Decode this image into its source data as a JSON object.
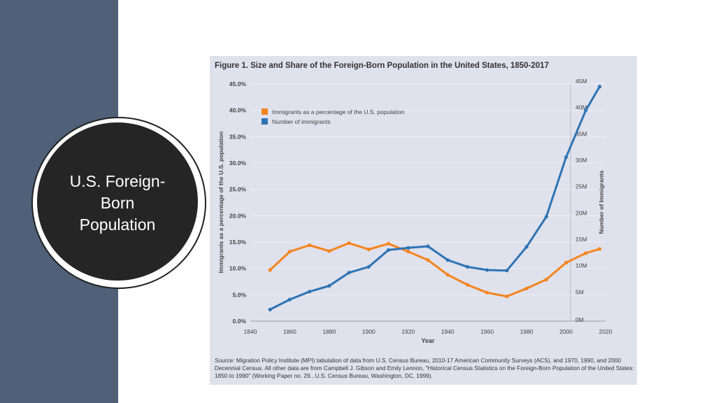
{
  "slide": {
    "title": "U.S. Foreign-Born Population"
  },
  "figure": {
    "title": "Figure 1. Size and Share of the Foreign-Born Population in the United States, 1850-2017",
    "source_label": "Source",
    "source_text": ": Migration Policy Institute (MPI) tabulation of data from U.S. Census Bureau, 2010-17 American Community Surveys (ACS), and 1970, 1990, and 2000 Decennial Census. All other data are from Campbell J. Gibson and Emily Lennon, \"Historical Census Statistics on the Foreign-Born Population of the United States: 1850 to 1990\" (Working Paper no. 29., U.S. Census Bureau, Washington, DC, 1999)."
  },
  "colors": {
    "band": "#4f6078",
    "percent_series": "#f5841f",
    "count_series": "#2e74b5",
    "panel": "#dfe1ec"
  },
  "chart_data": {
    "type": "line",
    "xlabel": "Year",
    "ylabel": "Immigrants as a percentage of the U.S. population",
    "y2label": "Number of Immigrants",
    "xlim": [
      1840,
      2020
    ],
    "x_ticks": [
      "1840",
      "1860",
      "1880",
      "1900",
      "1920",
      "1940",
      "1960",
      "1980",
      "2000",
      "2020"
    ],
    "ylim": [
      0,
      45
    ],
    "y_ticks": [
      "0.0%",
      "5.0%",
      "10.0%",
      "15.0%",
      "20.0%",
      "25.0%",
      "30.0%",
      "35.0%",
      "40.0%",
      "45.0%"
    ],
    "y2lim": [
      0,
      45
    ],
    "y2_ticks": [
      "0M",
      "5M",
      "10M",
      "15M",
      "20M",
      "25M",
      "30M",
      "35M",
      "40M",
      "45M"
    ],
    "legend_position": "top-left",
    "series": [
      {
        "name": "Immigrants as a percentage of the U.S. population",
        "axis": "left",
        "x": [
          1850,
          1860,
          1870,
          1880,
          1890,
          1900,
          1910,
          1920,
          1930,
          1940,
          1950,
          1960,
          1970,
          1980,
          1990,
          2000,
          2010,
          2017
        ],
        "values": [
          9.7,
          13.2,
          14.4,
          13.3,
          14.8,
          13.6,
          14.7,
          13.2,
          11.6,
          8.8,
          6.9,
          5.4,
          4.7,
          6.2,
          7.9,
          11.1,
          12.9,
          13.7
        ]
      },
      {
        "name": "Number of immigrants",
        "axis": "right",
        "x": [
          1850,
          1860,
          1870,
          1880,
          1890,
          1900,
          1910,
          1920,
          1930,
          1940,
          1950,
          1960,
          1970,
          1980,
          1990,
          2000,
          2010,
          2017
        ],
        "values": [
          2.2,
          4.1,
          5.6,
          6.7,
          9.2,
          10.3,
          13.5,
          13.9,
          14.2,
          11.6,
          10.3,
          9.7,
          9.6,
          14.1,
          19.8,
          31.1,
          40.0,
          44.5
        ]
      }
    ]
  }
}
